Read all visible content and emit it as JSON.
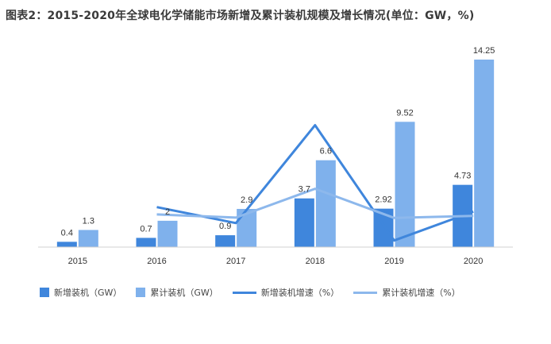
{
  "title": "图表2：2015-2020年全球电化学储能市场新增及累计装机规模及增长情况(单位：GW，%)",
  "chart_data": {
    "type": "bar",
    "categories": [
      "2015",
      "2016",
      "2017",
      "2018",
      "2019",
      "2020"
    ],
    "series": [
      {
        "name": "新增装机（GW）",
        "kind": "bar",
        "color": "#3f86dc",
        "values": [
          0.4,
          0.7,
          0.9,
          3.7,
          2.92,
          4.73
        ]
      },
      {
        "name": "累计装机（GW）",
        "kind": "bar",
        "color": "#7fb1ec",
        "values": [
          1.3,
          2,
          2.9,
          6.6,
          9.52,
          14.25
        ]
      },
      {
        "name": "新增装机增速（%）",
        "kind": "line",
        "color": "#3f86dc",
        "values": [
          null,
          75,
          29,
          311,
          -21,
          62
        ]
      },
      {
        "name": "累计装机增速（%）",
        "kind": "line",
        "color": "#8db8ec",
        "values": [
          null,
          54,
          45,
          128,
          44,
          50
        ]
      }
    ],
    "value_labels": {
      "bars_new": [
        "0.4",
        "0.7",
        "0.9",
        "3.7",
        "2.92",
        "4.73"
      ],
      "bars_cum": [
        "1.3",
        "2",
        "2.9",
        "6.6",
        "9.52",
        "14.25"
      ]
    },
    "ylim_bars": [
      0,
      14.25
    ],
    "ylim_lines": [
      -40,
      500
    ],
    "grid": false,
    "legend_position": "bottom"
  }
}
